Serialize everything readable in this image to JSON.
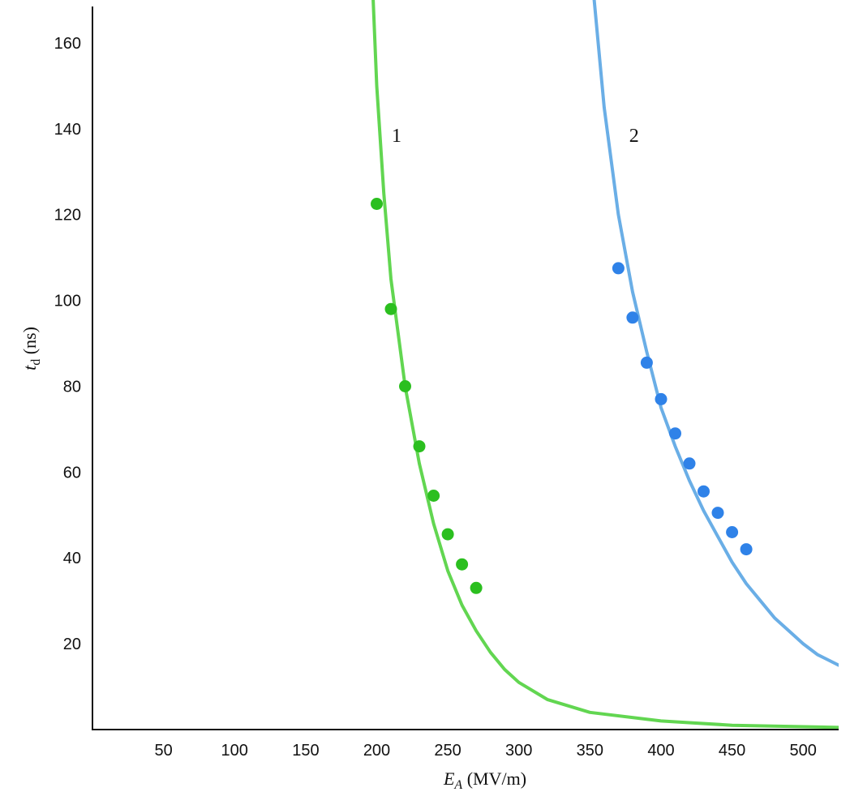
{
  "chart_data": {
    "type": "scatter",
    "xlabel": {
      "symbol": "E",
      "subscript": "A",
      "unit": " (MV/m)"
    },
    "ylabel": {
      "symbol": "t",
      "subscript": "d",
      "unit": " (ns)"
    },
    "xlim": [
      0,
      525
    ],
    "ylim": [
      0,
      170
    ],
    "xticks": [
      50,
      100,
      150,
      200,
      250,
      300,
      350,
      400,
      450,
      500
    ],
    "yticks": [
      20,
      40,
      60,
      80,
      100,
      120,
      140,
      160
    ],
    "grid": false,
    "legend": "none",
    "series": [
      {
        "name": "1",
        "color": "#2bbf1f",
        "points": [
          {
            "x": 200,
            "y": 122.5
          },
          {
            "x": 210,
            "y": 98
          },
          {
            "x": 220,
            "y": 80
          },
          {
            "x": 230,
            "y": 66
          },
          {
            "x": 240,
            "y": 54.5
          },
          {
            "x": 250,
            "y": 45.5
          },
          {
            "x": 260,
            "y": 38.5
          },
          {
            "x": 270,
            "y": 33
          }
        ]
      },
      {
        "name": "2",
        "color": "#2f82e8",
        "points": [
          {
            "x": 370,
            "y": 107.5
          },
          {
            "x": 380,
            "y": 96
          },
          {
            "x": 390,
            "y": 85.5
          },
          {
            "x": 400,
            "y": 77
          },
          {
            "x": 410,
            "y": 69
          },
          {
            "x": 420,
            "y": 62
          },
          {
            "x": 430,
            "y": 55.5
          },
          {
            "x": 440,
            "y": 50.5
          },
          {
            "x": 450,
            "y": 46
          },
          {
            "x": 460,
            "y": 42
          }
        ]
      }
    ],
    "fit_curves": [
      {
        "name": "1",
        "color": "#62d651",
        "points": [
          {
            "x": 197.5,
            "y": 170
          },
          {
            "x": 200,
            "y": 150
          },
          {
            "x": 205,
            "y": 125
          },
          {
            "x": 210,
            "y": 105
          },
          {
            "x": 220,
            "y": 80
          },
          {
            "x": 230,
            "y": 62
          },
          {
            "x": 240,
            "y": 48
          },
          {
            "x": 250,
            "y": 37
          },
          {
            "x": 260,
            "y": 29
          },
          {
            "x": 270,
            "y": 23
          },
          {
            "x": 280,
            "y": 18
          },
          {
            "x": 290,
            "y": 14
          },
          {
            "x": 300,
            "y": 11
          },
          {
            "x": 320,
            "y": 7
          },
          {
            "x": 350,
            "y": 4
          },
          {
            "x": 400,
            "y": 2
          },
          {
            "x": 450,
            "y": 1
          },
          {
            "x": 525,
            "y": 0.5
          }
        ]
      },
      {
        "name": "2",
        "color": "#6aaee6",
        "points": [
          {
            "x": 353,
            "y": 170
          },
          {
            "x": 360,
            "y": 145
          },
          {
            "x": 370,
            "y": 120
          },
          {
            "x": 380,
            "y": 102
          },
          {
            "x": 390,
            "y": 88
          },
          {
            "x": 400,
            "y": 75
          },
          {
            "x": 410,
            "y": 66
          },
          {
            "x": 420,
            "y": 58
          },
          {
            "x": 430,
            "y": 51
          },
          {
            "x": 440,
            "y": 45
          },
          {
            "x": 450,
            "y": 39
          },
          {
            "x": 460,
            "y": 34
          },
          {
            "x": 470,
            "y": 30
          },
          {
            "x": 480,
            "y": 26
          },
          {
            "x": 490,
            "y": 23
          },
          {
            "x": 500,
            "y": 20
          },
          {
            "x": 510,
            "y": 17.5
          },
          {
            "x": 525,
            "y": 15
          }
        ]
      }
    ],
    "annotations": [
      {
        "text": "1",
        "x": 214,
        "y": 138.5
      },
      {
        "text": "2",
        "x": 381,
        "y": 138.5
      }
    ]
  }
}
